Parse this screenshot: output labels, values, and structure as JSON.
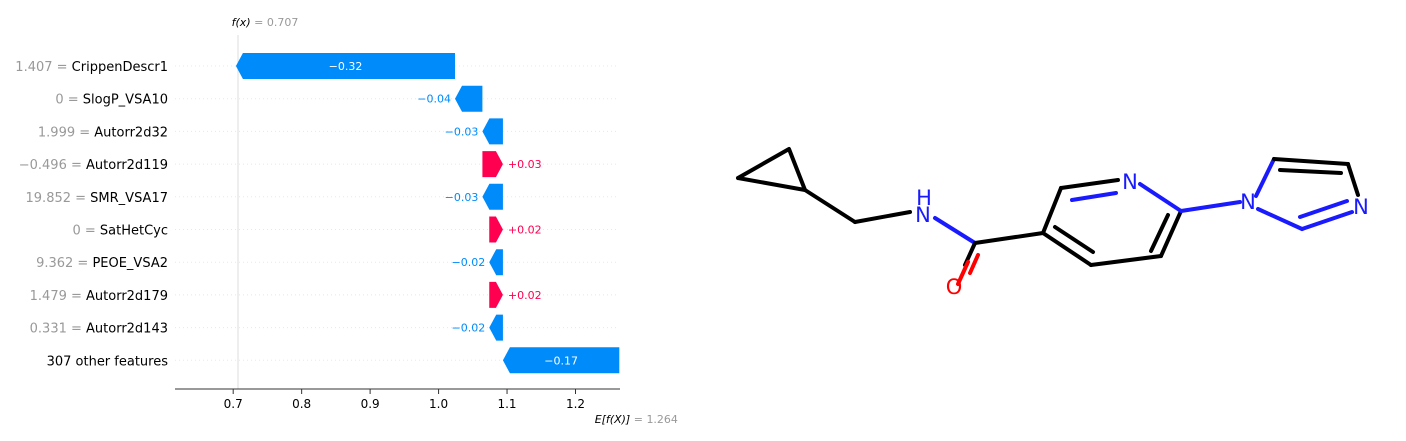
{
  "chart_data": {
    "type": "waterfall",
    "fx_label": "f(x)",
    "fx_value_text": "0.707",
    "fx": 0.707,
    "ex_label": "E[f(X)]",
    "ex_value_text": "1.264",
    "ex": 1.264,
    "xlim": [
      0.615,
      1.265
    ],
    "xticks": [
      0.7,
      0.8,
      0.9,
      1.0,
      1.1,
      1.2
    ],
    "xtick_labels": [
      "0.7",
      "0.8",
      "0.9",
      "1.0",
      "1.1",
      "1.2"
    ],
    "features": [
      {
        "value": "1.407",
        "name": "CrippenDescr1",
        "shap": -0.32,
        "label": "−0.32"
      },
      {
        "value": "0",
        "name": "SlogP_VSA10",
        "shap": -0.04,
        "label": "−0.04"
      },
      {
        "value": "1.999",
        "name": "Autorr2d32",
        "shap": -0.03,
        "label": "−0.03"
      },
      {
        "value": "−0.496",
        "name": "Autorr2d119",
        "shap": 0.03,
        "label": "+0.03"
      },
      {
        "value": "19.852",
        "name": "SMR_VSA17",
        "shap": -0.03,
        "label": "−0.03"
      },
      {
        "value": "0",
        "name": "SatHetCyc",
        "shap": 0.02,
        "label": "+0.02"
      },
      {
        "value": "9.362",
        "name": "PEOE_VSA2",
        "shap": -0.02,
        "label": "−0.02"
      },
      {
        "value": "1.479",
        "name": "Autorr2d179",
        "shap": 0.02,
        "label": "+0.02"
      },
      {
        "value": "0.331",
        "name": "Autorr2d143",
        "shap": -0.02,
        "label": "−0.02"
      },
      {
        "value": "",
        "name": "307 other features",
        "shap": -0.17,
        "label": "−0.17"
      }
    ],
    "colors": {
      "positive": "#ff0051",
      "negative": "#008bfb",
      "value_text": "#999999",
      "name_text": "#000000"
    }
  },
  "molecule": {
    "atom_labels": [
      "N",
      "H",
      "O",
      "N",
      "N",
      "N"
    ]
  }
}
